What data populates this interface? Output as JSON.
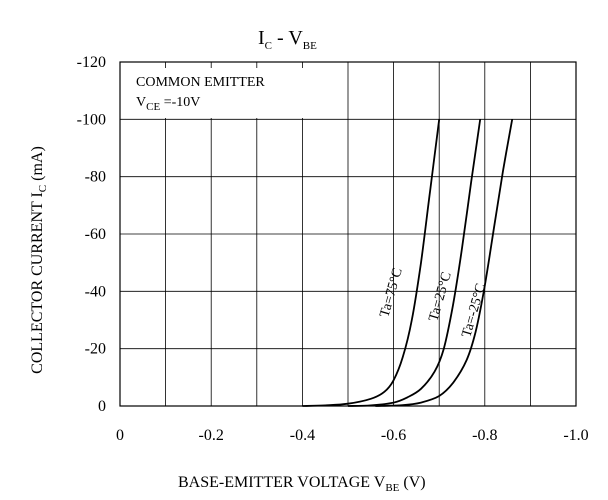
{
  "chart_data": {
    "type": "line",
    "title": {
      "main": "I",
      "sub1": "C",
      "mid": "  - V",
      "sub2": "BE"
    },
    "xlabel": {
      "main": "BASE-EMITTER VOLTAGE V",
      "sub": "BE",
      "unit": "  (V)"
    },
    "ylabel": {
      "main": "COLLECTOR CURRENT I",
      "sub": "C",
      "unit": "  (mA)"
    },
    "xlim": [
      0,
      -1.0
    ],
    "ylim": [
      0,
      -120
    ],
    "x_ticks": [
      {
        "value": 0,
        "label": "0"
      },
      {
        "value": -0.2,
        "label": "-0.2"
      },
      {
        "value": -0.4,
        "label": "-0.4"
      },
      {
        "value": -0.6,
        "label": "-0.6"
      },
      {
        "value": -0.8,
        "label": "-0.8"
      },
      {
        "value": -1.0,
        "label": "-1.0"
      }
    ],
    "y_ticks": [
      {
        "value": 0,
        "label": "0"
      },
      {
        "value": -20,
        "label": "-20"
      },
      {
        "value": -40,
        "label": "-40"
      },
      {
        "value": -60,
        "label": "-60"
      },
      {
        "value": -80,
        "label": "-80"
      },
      {
        "value": -100,
        "label": "-100"
      },
      {
        "value": -120,
        "label": "-120"
      }
    ],
    "grid_x_step": -0.1,
    "grid_y_step": -20,
    "annotation": {
      "line1": "COMMON EMITTER",
      "line2_main": "V",
      "line2_sub": "CE",
      "line2_rest": " =-10V"
    },
    "series": [
      {
        "name": "Ta=75°C",
        "x": [
          -0.4,
          -0.45,
          -0.5,
          -0.55,
          -0.58,
          -0.6,
          -0.62,
          -0.64,
          -0.66,
          -0.68,
          -0.7
        ],
        "y": [
          0,
          -0.2,
          -0.8,
          -2.5,
          -5,
          -9,
          -17,
          -30,
          -50,
          -75,
          -100
        ]
      },
      {
        "name": "Ta=25°C",
        "x": [
          -0.5,
          -0.55,
          -0.6,
          -0.63,
          -0.66,
          -0.69,
          -0.71,
          -0.73,
          -0.75,
          -0.77,
          -0.79
        ],
        "y": [
          0,
          -0.2,
          -1.2,
          -3,
          -6,
          -12,
          -20,
          -35,
          -55,
          -78,
          -100
        ]
      },
      {
        "name": "Ta=-25°C",
        "x": [
          -0.56,
          -0.62,
          -0.66,
          -0.7,
          -0.73,
          -0.76,
          -0.78,
          -0.8,
          -0.82,
          -0.84,
          -0.86
        ],
        "y": [
          0,
          -0.3,
          -1.2,
          -3.5,
          -8,
          -16,
          -26,
          -42,
          -62,
          -82,
          -100
        ]
      }
    ],
    "curve_labels": [
      "Ta=75°C",
      "Ta=25°C",
      "Ta=-25°C"
    ],
    "grid": true,
    "legend": "none"
  }
}
